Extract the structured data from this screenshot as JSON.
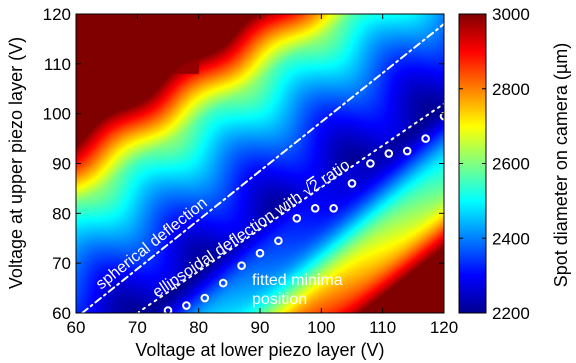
{
  "chart_data": {
    "type": "heatmap",
    "title": "",
    "xlabel": "Voltage at lower piezo layer (V)",
    "ylabel": "Voltage at upper piezo layer (V)",
    "xlim": [
      60,
      120
    ],
    "ylim": [
      60,
      120
    ],
    "x_ticks": [
      60,
      70,
      80,
      90,
      100,
      110,
      120
    ],
    "y_ticks": [
      60,
      70,
      80,
      90,
      100,
      110,
      120
    ],
    "colorbar": {
      "label": "Spot diameter on camera (µm)",
      "min": 2200,
      "max": 3000,
      "ticks": [
        2200,
        2400,
        2600,
        2800,
        3000
      ],
      "colormap": "jet"
    },
    "lines": [
      {
        "label": "spherical deflection",
        "style": "dash-dot",
        "color": "#ffffff",
        "x": [
          61,
          120
        ],
        "y": [
          60,
          118
        ]
      },
      {
        "label": "ellipsoidal deflection with √2 ratio",
        "style": "dotted",
        "color": "#ffffff",
        "x": [
          70,
          120
        ],
        "y": [
          60,
          102
        ]
      }
    ],
    "annotations": {
      "line1": "spherical deflection",
      "line2_pre": "ellipsoidal deflection with ",
      "line2_sqrt": "√",
      "line2_num": "2",
      "line2_post": " ratio",
      "minima_1": "fitted minima",
      "minima_2": "position"
    },
    "fitted_minima": {
      "x": [
        75,
        78,
        81,
        84,
        87,
        90,
        93,
        96,
        99,
        102,
        105,
        108,
        111,
        114,
        117,
        120
      ],
      "y": [
        60.5,
        61.5,
        63,
        66,
        69.5,
        72,
        74.5,
        79,
        81,
        81,
        86,
        90,
        92,
        92.5,
        95,
        99.5
      ]
    }
  },
  "colors": {
    "minimum_blue": "#00008f",
    "maximum_red": "#7f0000"
  }
}
